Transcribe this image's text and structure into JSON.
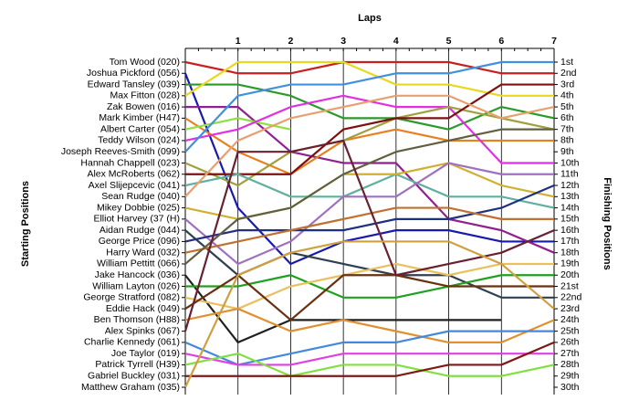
{
  "chart_data": {
    "type": "bump",
    "title": "Laps",
    "y_label": "Starting Positions",
    "y2_label": "Finishing Positions",
    "x": [
      0,
      1,
      2,
      3,
      4,
      5,
      6,
      7
    ],
    "xlim": [
      0,
      7
    ],
    "xticks": [
      1,
      2,
      3,
      4,
      5,
      6,
      7
    ],
    "ylim": [
      1,
      30
    ],
    "finishing_labels": [
      "1st",
      "2nd",
      "3rd",
      "4th",
      "5th",
      "6th",
      "7th",
      "8th",
      "9th",
      "10th",
      "11th",
      "12th",
      "13th",
      "14th",
      "15th",
      "16th",
      "17th",
      "18th",
      "19th",
      "20th",
      "21st",
      "22nd",
      "23rd",
      "24th",
      "25th",
      "26th",
      "27th",
      "28th",
      "29th",
      "30th"
    ],
    "series": [
      {
        "name": "Tom Wood (020)",
        "color": "#c8201e",
        "values": [
          1,
          2,
          2,
          1,
          1,
          1,
          2,
          2
        ]
      },
      {
        "name": "Joshua Pickford (056)",
        "color": "#1a1aaa",
        "values": [
          2,
          14,
          19,
          17,
          16,
          16,
          17,
          17
        ]
      },
      {
        "name": "Edward Tansley (039)",
        "color": "#2a9a2a",
        "values": [
          3,
          3,
          4,
          6,
          6,
          7,
          5,
          6
        ]
      },
      {
        "name": "Max Fitton (028)",
        "color": "#e8d820",
        "values": [
          4,
          1,
          1,
          1,
          3,
          3,
          4,
          4
        ]
      },
      {
        "name": "Zak Bowen (016)",
        "color": "#902090",
        "values": [
          5,
          5,
          9,
          10,
          10,
          15,
          16,
          18
        ]
      },
      {
        "name": "Mark Kimber (H47)",
        "color": "#e88020",
        "values": [
          6,
          9,
          11,
          8,
          7,
          8,
          8,
          8
        ]
      },
      {
        "name": "Albert Carter (054)",
        "color": "#90e040",
        "values": [
          7,
          6,
          7,
          null,
          null,
          null,
          null,
          null
        ]
      },
      {
        "name": "Teddy Wilson (024)",
        "color": "#e030e0",
        "values": [
          8,
          7,
          5,
          4,
          5,
          5,
          10,
          10
        ]
      },
      {
        "name": "Joseph Reeves-Smith (099)",
        "color": "#4090e0",
        "values": [
          9,
          4,
          3,
          3,
          2,
          2,
          1,
          1
        ]
      },
      {
        "name": "Hannah Chappell (023)",
        "color": "#a0a040",
        "values": [
          10,
          12,
          9,
          8,
          6,
          5,
          6,
          7
        ]
      },
      {
        "name": "Alex McRoberts (062)",
        "color": "#801010",
        "values": [
          11,
          11,
          11,
          7,
          6,
          6,
          3,
          3
        ]
      },
      {
        "name": "Axel Slijepcevic (041)",
        "color": "#60b0a0",
        "values": [
          12,
          11,
          13,
          13,
          11,
          13,
          13,
          14
        ]
      },
      {
        "name": "Sean Rudge (040)",
        "color": "#e8a070",
        "values": [
          13,
          8,
          6,
          5,
          4,
          4,
          6,
          5
        ]
      },
      {
        "name": "Mikey Dobbie (025)",
        "color": "#d0b030",
        "values": [
          14,
          15,
          14,
          11,
          11,
          10,
          12,
          13
        ]
      },
      {
        "name": "Elliot Harvey (37 (H)",
        "color": "#a070c0",
        "values": [
          15,
          19,
          17,
          13,
          13,
          10,
          11,
          11
        ]
      },
      {
        "name": "Aidan Rudge (044)",
        "color": "#304050",
        "values": [
          16,
          20,
          18,
          19,
          20,
          20,
          22,
          22
        ]
      },
      {
        "name": "George Price (096)",
        "color": "#203080",
        "values": [
          17,
          16,
          16,
          16,
          15,
          15,
          14,
          12
        ]
      },
      {
        "name": "Harry Ward (032)",
        "color": "#c07030",
        "values": [
          18,
          17,
          16,
          15,
          14,
          14,
          15,
          15
        ]
      },
      {
        "name": "William Pettitt (066)",
        "color": "#606040",
        "values": [
          19,
          15,
          14,
          11,
          9,
          8,
          7,
          7
        ]
      },
      {
        "name": "Jake Hancock (036)",
        "color": "#202020",
        "values": [
          20,
          26,
          24,
          24,
          24,
          24,
          24,
          null
        ]
      },
      {
        "name": "William Layton (026)",
        "color": "#20a020",
        "values": [
          21,
          21,
          20,
          22,
          22,
          21,
          20,
          20
        ]
      },
      {
        "name": "George Stratford (082)",
        "color": "#e8c060",
        "values": [
          22,
          23,
          21,
          20,
          19,
          20,
          19,
          19
        ]
      },
      {
        "name": "Eddie Hack (049)",
        "color": "#6a3010",
        "values": [
          23,
          20,
          24,
          20,
          20,
          21,
          21,
          21
        ]
      },
      {
        "name": "Ben Thomson (H88)",
        "color": "#e09030",
        "values": [
          24,
          23,
          25,
          24,
          25,
          26,
          26,
          24
        ]
      },
      {
        "name": "Alex Spinks (067)",
        "color": "#6a2030",
        "values": [
          25,
          9,
          9,
          8,
          20,
          19,
          18,
          16
        ]
      },
      {
        "name": "Charlie Kennedy (061)",
        "color": "#4488dd",
        "values": [
          26,
          28,
          27,
          26,
          26,
          25,
          25,
          25
        ]
      },
      {
        "name": "Joe Taylor (019)",
        "color": "#e040e0",
        "values": [
          27,
          28,
          28,
          27,
          27,
          27,
          27,
          27
        ]
      },
      {
        "name": "Patrick Tyrrell (H39)",
        "color": "#80e040",
        "values": [
          28,
          27,
          29,
          28,
          28,
          29,
          29,
          28
        ]
      },
      {
        "name": "Gabriel Buckley (031)",
        "color": "#801818",
        "values": [
          29,
          29,
          29,
          29,
          29,
          28,
          28,
          26
        ]
      },
      {
        "name": "Matthew Graham (035)",
        "color": "#d0a040",
        "values": [
          30,
          20,
          18,
          17,
          17,
          17,
          19,
          23
        ]
      }
    ]
  }
}
